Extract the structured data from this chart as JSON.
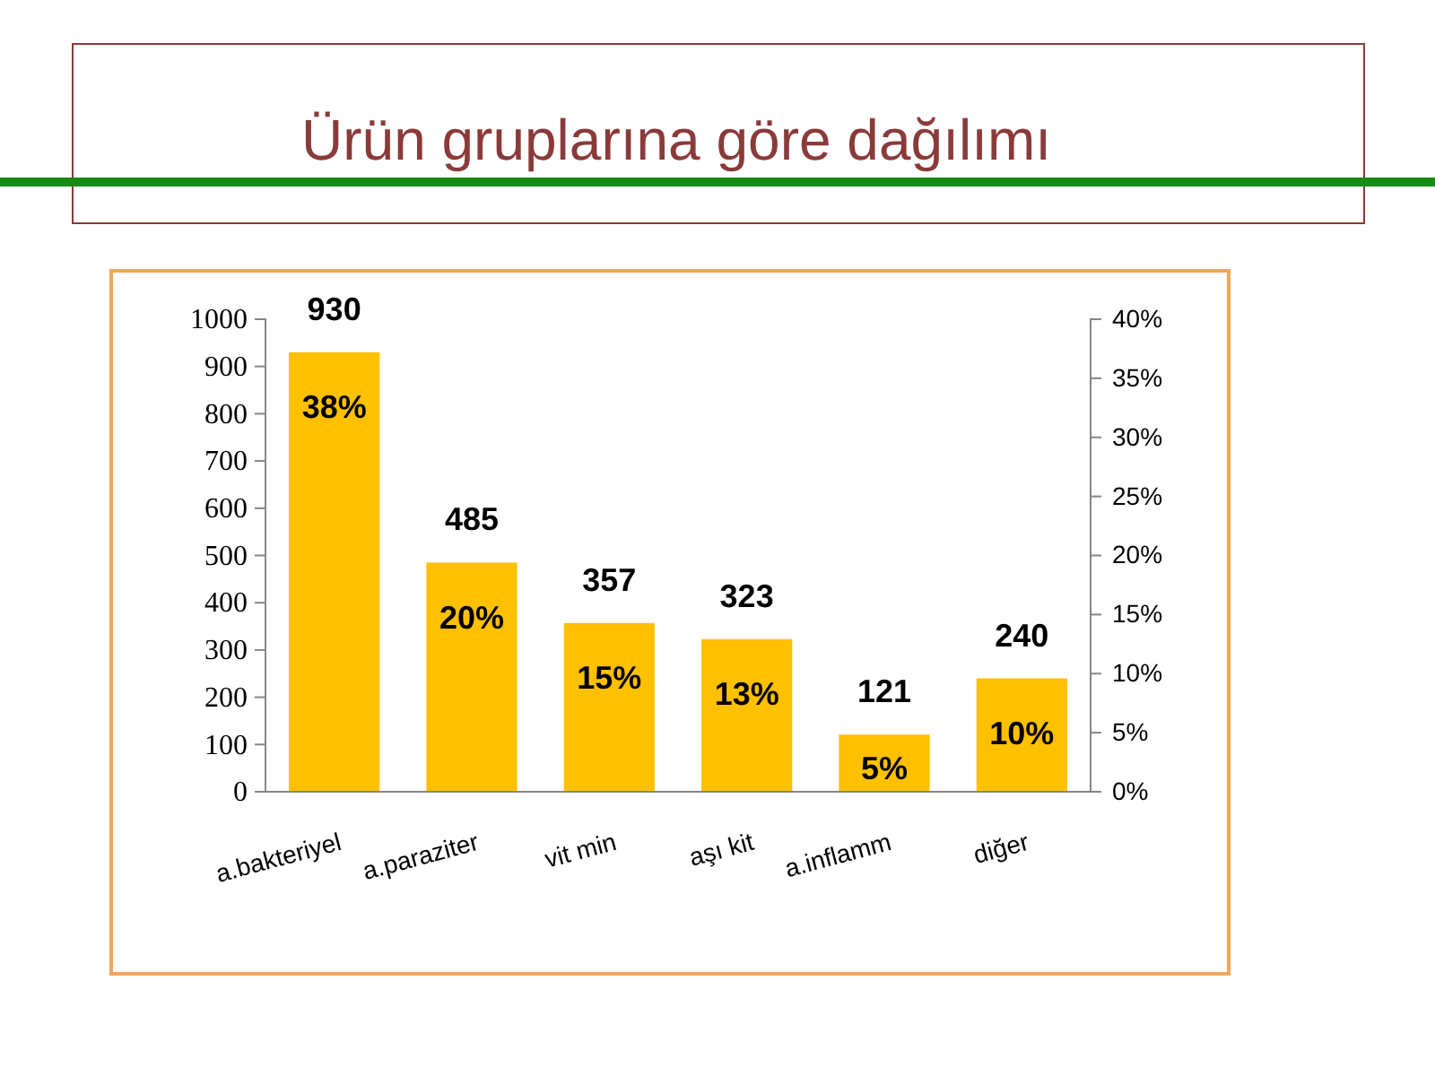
{
  "chart_data": {
    "type": "bar",
    "title": "Ürün gruplarına göre dağılımı",
    "categories": [
      "a.bakteriyel",
      "a.paraziter",
      "vit min",
      "aşı kit",
      "a.inflamm",
      "diğer"
    ],
    "values": [
      930,
      485,
      357,
      323,
      121,
      240
    ],
    "color": "#ffc000",
    "data_labels": true,
    "ylim": [
      0,
      1000
    ],
    "yticks": [
      0,
      100,
      200,
      300,
      400,
      500,
      600,
      700,
      800,
      900,
      1000
    ],
    "y2lim": [
      0,
      40
    ],
    "y2ticks": [
      {
        "value": 0,
        "label": "0%"
      },
      {
        "value": 5,
        "label": "5%"
      },
      {
        "value": 10,
        "label": "10%"
      },
      {
        "value": 15,
        "label": "15%"
      },
      {
        "value": 20,
        "label": "20%"
      },
      {
        "value": 25,
        "label": "25%"
      },
      {
        "value": 30,
        "label": "30%"
      },
      {
        "value": 35,
        "label": "35%"
      },
      {
        "value": 40,
        "label": "40%"
      }
    ],
    "annotations": [
      "38%",
      "20%",
      "15%",
      "13%",
      "5%",
      "10%"
    ]
  }
}
